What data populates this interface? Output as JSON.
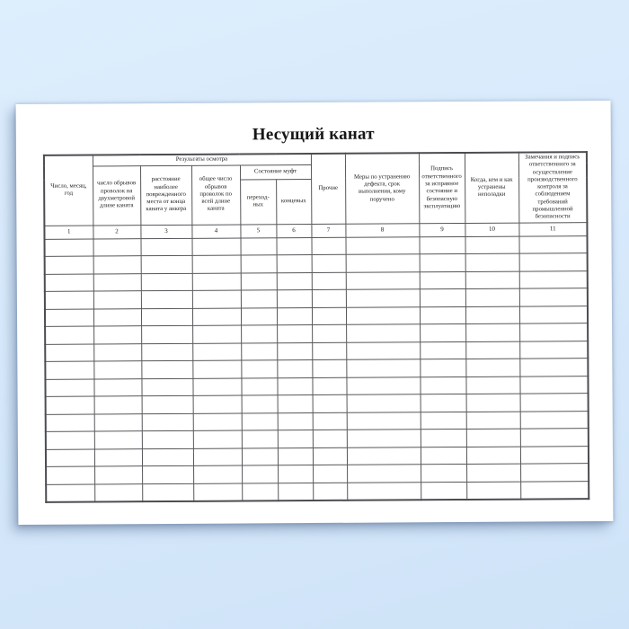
{
  "page": {
    "title": "Несущий канат",
    "colors": {
      "background": "#d7e9fb",
      "paper": "#ffffff",
      "grid_border": "#55575a",
      "text": "#1f1f1f"
    }
  },
  "table": {
    "group_headers": {
      "inspection_results": "Результаты осмотра",
      "coupling_condition": "Состояние муфт"
    },
    "columns": [
      {
        "num": "1",
        "label": "Число, месяц, год"
      },
      {
        "num": "2",
        "label": "число обрывов проволок на двухметровой длине каната"
      },
      {
        "num": "3",
        "label": "расстояние наиболее поврежденного места от конца каната у анкера"
      },
      {
        "num": "4",
        "label": "общее число обрывов проволок по всей длине каната"
      },
      {
        "num": "5",
        "label": "переход- ных"
      },
      {
        "num": "6",
        "label": "концевых"
      },
      {
        "num": "7",
        "label": "Прочие"
      },
      {
        "num": "8",
        "label": "Меры по устранению дефекта, срок выполнения, кому поручено"
      },
      {
        "num": "9",
        "label": "Подпись ответственного за исправное состояние и безопасную эксплуатацию"
      },
      {
        "num": "10",
        "label": "Когда, кем и как устранены неполадки"
      },
      {
        "num": "11",
        "label": "Замечания и подпись ответственного за осуществление производственного контроля за соблюдением требований промышленной безопасности"
      }
    ],
    "empty_row_count": 15
  }
}
